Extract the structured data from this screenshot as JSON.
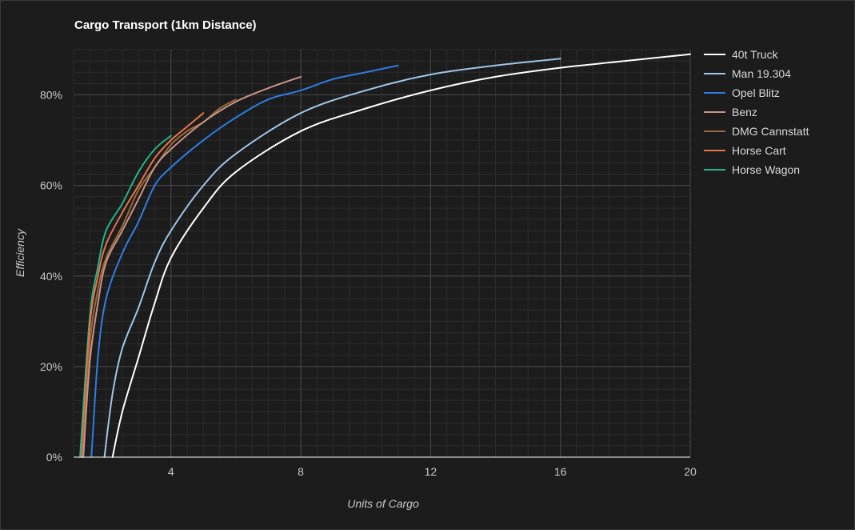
{
  "chart_data": {
    "type": "line",
    "title": "Cargo Transport (1km Distance)",
    "xlabel": "Units of Cargo",
    "ylabel": "Efficiency",
    "xlim": [
      1,
      20
    ],
    "ylim": [
      0,
      0.9
    ],
    "x_major_ticks": [
      4,
      8,
      12,
      16,
      20
    ],
    "x_minor_step": 0.5,
    "y_major_ticks": [
      0,
      0.2,
      0.4,
      0.6,
      0.8
    ],
    "y_tick_labels": [
      "0%",
      "20%",
      "40%",
      "60%",
      "80%"
    ],
    "y_minor_step": 0.025,
    "grid": true,
    "legend_position": "right",
    "series": [
      {
        "name": "40t Truck",
        "color": "#ffffff",
        "x": [
          2.2,
          2.5,
          3.0,
          3.5,
          4.0,
          5.0,
          6.0,
          8.0,
          10.0,
          12.0,
          14.0,
          16.0,
          18.0,
          20.0
        ],
        "y": [
          0.0,
          0.1,
          0.22,
          0.34,
          0.44,
          0.55,
          0.63,
          0.72,
          0.77,
          0.81,
          0.84,
          0.86,
          0.875,
          0.89
        ]
      },
      {
        "name": "Man 19.304",
        "color": "#9fc5e8",
        "x": [
          1.95,
          2.2,
          2.5,
          3.0,
          3.5,
          4.0,
          5.0,
          6.0,
          8.0,
          10.0,
          12.0,
          14.0,
          16.0
        ],
        "y": [
          0.0,
          0.14,
          0.24,
          0.33,
          0.43,
          0.5,
          0.6,
          0.67,
          0.76,
          0.81,
          0.845,
          0.865,
          0.88
        ]
      },
      {
        "name": "Opel Blitz",
        "color": "#2e7de6",
        "x": [
          1.55,
          1.75,
          2.0,
          2.5,
          3.0,
          3.5,
          4.0,
          5.0,
          6.0,
          7.0,
          8.0,
          9.0,
          10.0,
          11.0
        ],
        "y": [
          0.0,
          0.22,
          0.35,
          0.45,
          0.52,
          0.6,
          0.64,
          0.7,
          0.75,
          0.79,
          0.81,
          0.835,
          0.85,
          0.865
        ]
      },
      {
        "name": "Benz",
        "color": "#c9948a",
        "x": [
          1.3,
          1.5,
          1.75,
          2.0,
          2.5,
          3.0,
          3.5,
          4.0,
          5.0,
          6.0,
          7.0,
          8.0
        ],
        "y": [
          0.0,
          0.21,
          0.34,
          0.43,
          0.5,
          0.57,
          0.64,
          0.68,
          0.74,
          0.785,
          0.815,
          0.84
        ]
      },
      {
        "name": "DMG Cannstatt",
        "color": "#9b6a3a",
        "x": [
          1.28,
          1.5,
          1.75,
          2.0,
          2.5,
          3.0,
          3.5,
          4.0,
          4.5,
          5.0,
          5.5,
          6.0
        ],
        "y": [
          0.0,
          0.25,
          0.37,
          0.44,
          0.51,
          0.59,
          0.64,
          0.69,
          0.72,
          0.74,
          0.77,
          0.79
        ]
      },
      {
        "name": "Horse Cart",
        "color": "#e8744a",
        "x": [
          1.25,
          1.5,
          1.75,
          2.0,
          2.5,
          3.0,
          3.5,
          4.0,
          4.5,
          5.0
        ],
        "y": [
          0.0,
          0.29,
          0.4,
          0.47,
          0.54,
          0.6,
          0.66,
          0.7,
          0.73,
          0.76
        ]
      },
      {
        "name": "Horse Wagon",
        "color": "#26b38a",
        "x": [
          1.2,
          1.5,
          1.75,
          2.0,
          2.5,
          3.0,
          3.5,
          4.0
        ],
        "y": [
          0.0,
          0.31,
          0.42,
          0.5,
          0.56,
          0.63,
          0.68,
          0.71
        ]
      }
    ]
  }
}
